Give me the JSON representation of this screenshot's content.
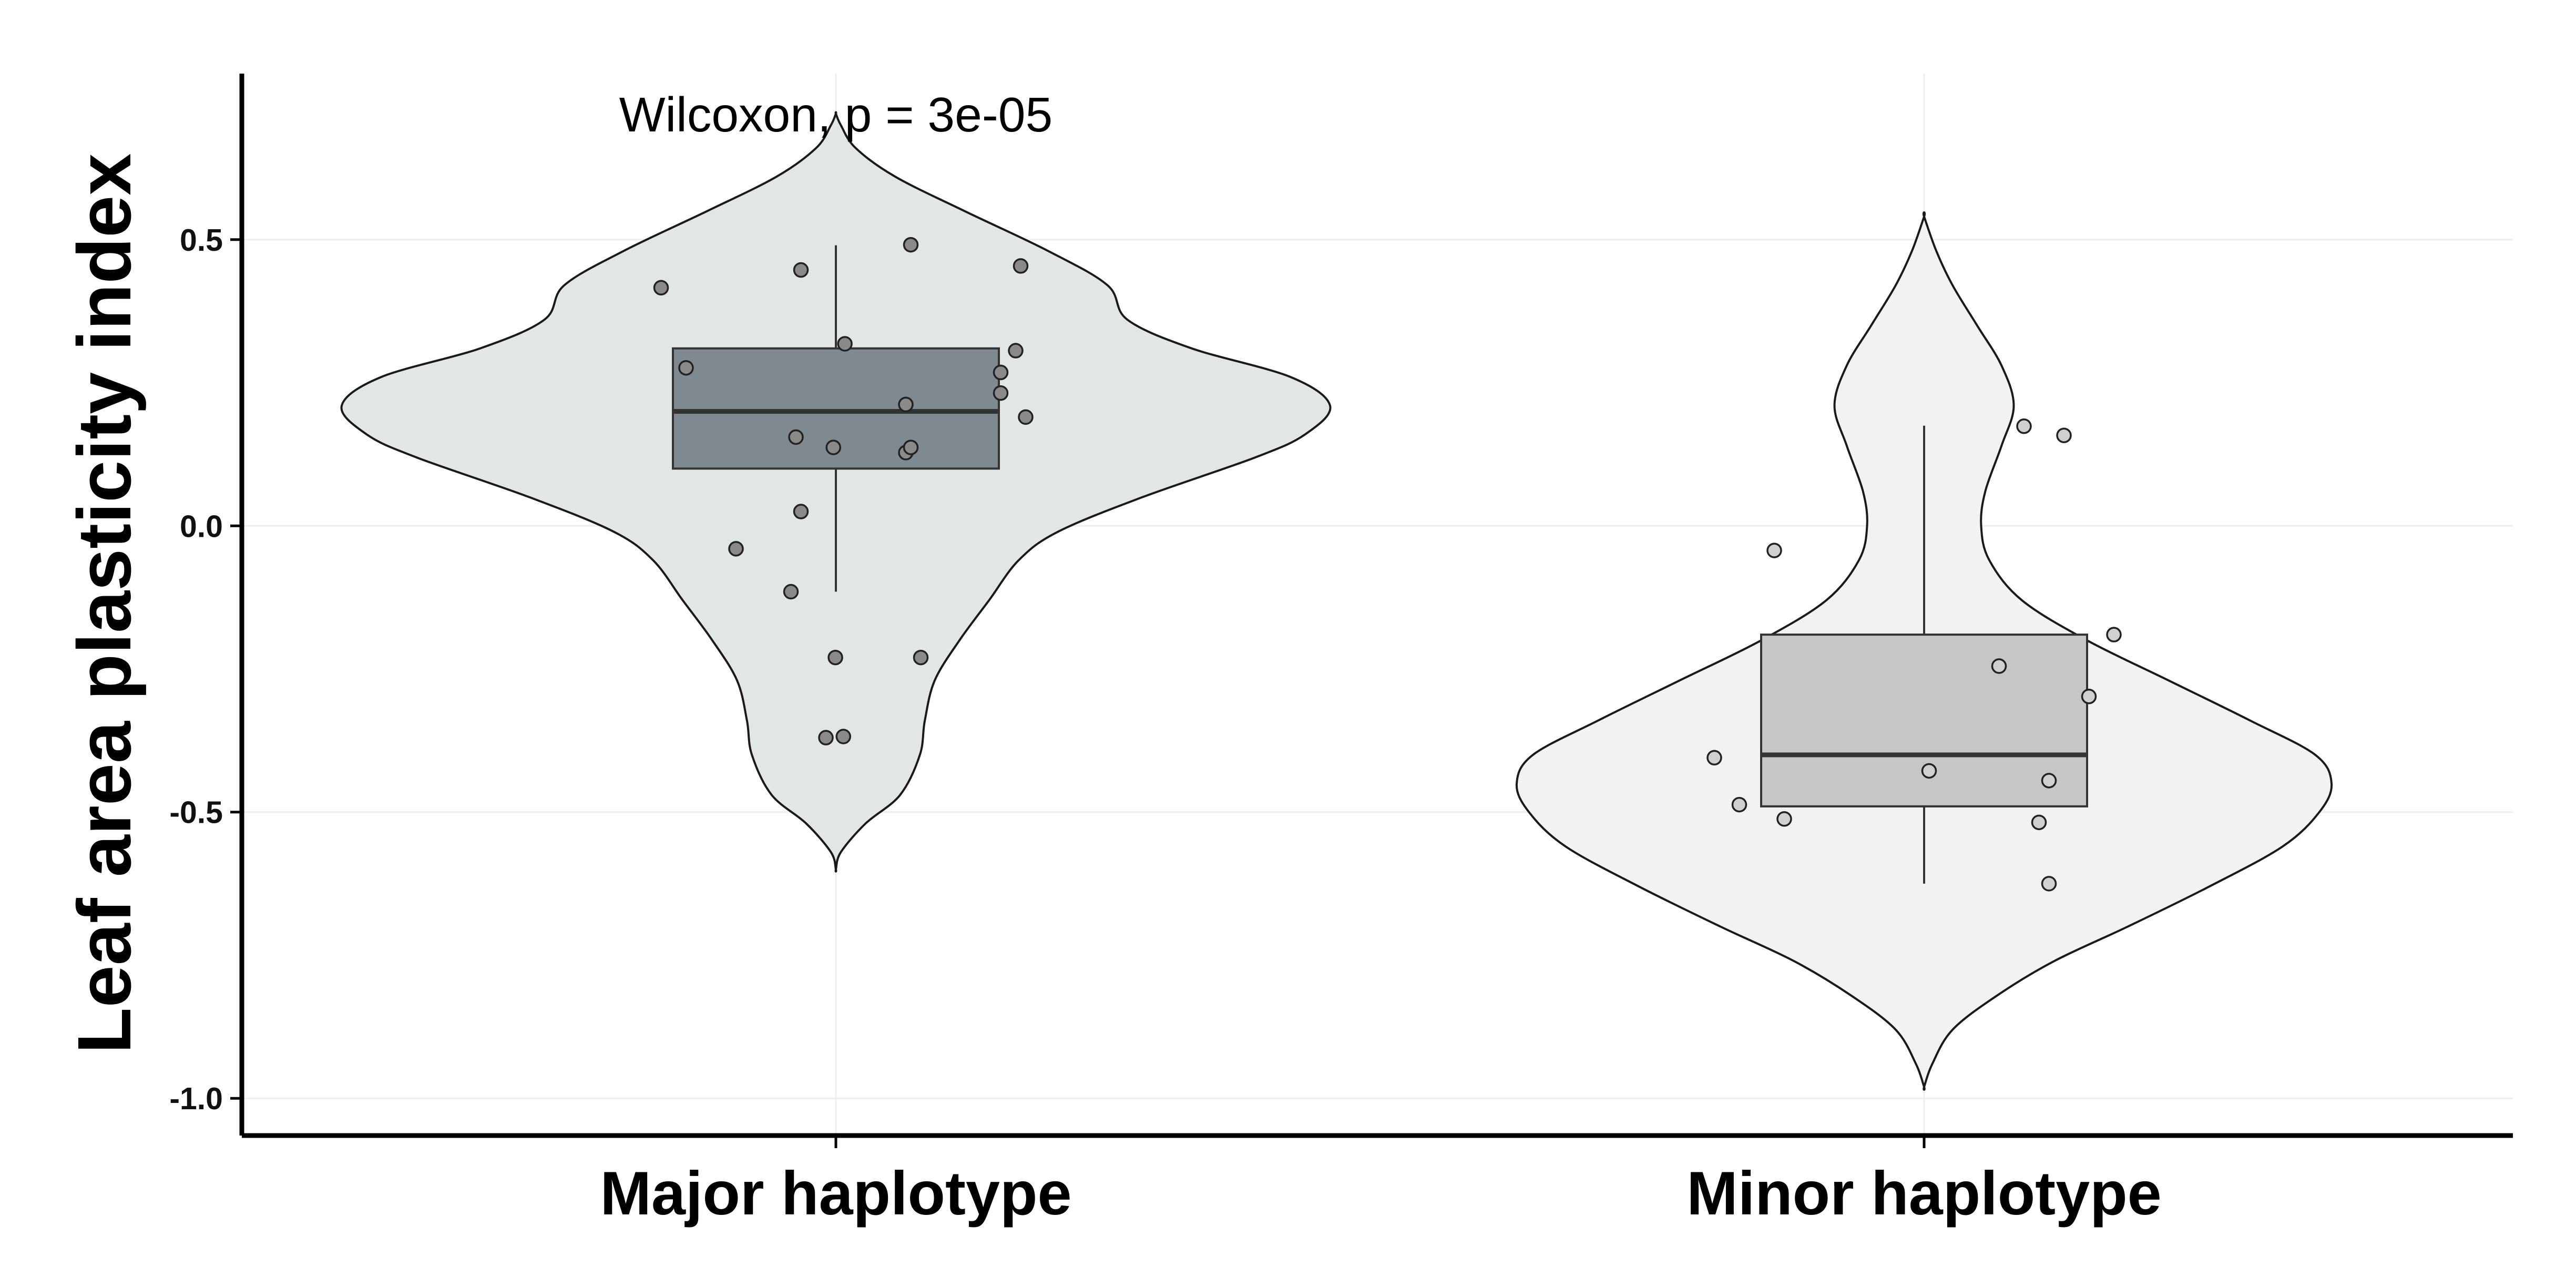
{
  "chart_data": {
    "type": "violin",
    "title": "",
    "xlabel": "",
    "ylabel": "Leaf area plasticity index",
    "ylim": [
      -1.065,
      0.79
    ],
    "yticks": [
      0.5,
      0.0,
      -0.5,
      -1.0
    ],
    "ytick_labels": [
      "0.5",
      "0.0",
      "-0.5",
      "-1.0"
    ],
    "categories": [
      "Major haplotype",
      "Minor haplotype"
    ],
    "annotation": "Wilcoxon, p = 3e-05",
    "grid": true,
    "legend": "none",
    "colors": {
      "major_violin_fill": "#e3e6e7",
      "minor_violin_fill": "#f2f2f2",
      "major_box_fill": "#7e8a90",
      "minor_box_fill": "#c6c6c6",
      "major_point_fill": "#8a8a8a",
      "minor_point_fill": "#d0d0d0",
      "outline": "#1a1a1a",
      "grid": "#eeeeee"
    },
    "groups": [
      {
        "name": "Major haplotype",
        "box": {
          "q1": 0.1,
          "median": 0.2,
          "q3": 0.31,
          "whisker_low": -0.115,
          "whisker_high": 0.49
        },
        "violin_range": [
          -0.6,
          0.72
        ],
        "density_profile": [
          [
            -0.6,
            0.0
          ],
          [
            -0.57,
            0.01
          ],
          [
            -0.52,
            0.06
          ],
          [
            -0.47,
            0.13
          ],
          [
            -0.4,
            0.17
          ],
          [
            -0.34,
            0.18
          ],
          [
            -0.27,
            0.2
          ],
          [
            -0.2,
            0.25
          ],
          [
            -0.13,
            0.31
          ],
          [
            -0.06,
            0.37
          ],
          [
            -0.01,
            0.45
          ],
          [
            0.05,
            0.62
          ],
          [
            0.12,
            0.85
          ],
          [
            0.16,
            0.95
          ],
          [
            0.21,
            1.0
          ],
          [
            0.26,
            0.92
          ],
          [
            0.31,
            0.72
          ],
          [
            0.36,
            0.59
          ],
          [
            0.42,
            0.55
          ],
          [
            0.48,
            0.43
          ],
          [
            0.55,
            0.26
          ],
          [
            0.61,
            0.12
          ],
          [
            0.66,
            0.04
          ],
          [
            0.7,
            0.01
          ],
          [
            0.72,
            0.0
          ]
        ],
        "points": [
          [
            -0.35,
            0.416
          ],
          [
            -0.3,
            0.276
          ],
          [
            -0.2,
            -0.04
          ],
          [
            -0.09,
            -0.115
          ],
          [
            -0.08,
            0.155
          ],
          [
            -0.07,
            0.447
          ],
          [
            -0.07,
            0.025
          ],
          [
            -0.02,
            -0.37
          ],
          [
            -0.005,
            0.137
          ],
          [
            -0.001,
            -0.23
          ],
          [
            0.015,
            -0.368
          ],
          [
            0.018,
            0.318
          ],
          [
            0.14,
            0.212
          ],
          [
            0.14,
            0.128
          ],
          [
            0.15,
            0.137
          ],
          [
            0.15,
            0.491
          ],
          [
            0.17,
            -0.23
          ],
          [
            0.33,
            0.268
          ],
          [
            0.33,
            0.232
          ],
          [
            0.36,
            0.306
          ],
          [
            0.37,
            0.454
          ],
          [
            0.38,
            0.19
          ]
        ]
      },
      {
        "name": "Minor haplotype",
        "box": {
          "q1": -0.49,
          "median": -0.4,
          "q3": -0.19,
          "whisker_low": -0.625,
          "whisker_high": 0.175
        },
        "violin_range": [
          -0.98,
          0.54
        ],
        "density_profile": [
          [
            -0.98,
            0.0
          ],
          [
            -0.94,
            0.02
          ],
          [
            -0.88,
            0.07
          ],
          [
            -0.82,
            0.18
          ],
          [
            -0.76,
            0.32
          ],
          [
            -0.7,
            0.5
          ],
          [
            -0.63,
            0.7
          ],
          [
            -0.56,
            0.88
          ],
          [
            -0.5,
            0.97
          ],
          [
            -0.45,
            1.0
          ],
          [
            -0.4,
            0.96
          ],
          [
            -0.34,
            0.8
          ],
          [
            -0.27,
            0.6
          ],
          [
            -0.2,
            0.4
          ],
          [
            -0.13,
            0.24
          ],
          [
            -0.06,
            0.16
          ],
          [
            0.0,
            0.14
          ],
          [
            0.06,
            0.15
          ],
          [
            0.14,
            0.19
          ],
          [
            0.21,
            0.22
          ],
          [
            0.28,
            0.19
          ],
          [
            0.35,
            0.13
          ],
          [
            0.42,
            0.07
          ],
          [
            0.48,
            0.03
          ],
          [
            0.54,
            0.0
          ]
        ],
        "points": [
          [
            -0.42,
            -0.405
          ],
          [
            -0.37,
            -0.487
          ],
          [
            -0.3,
            -0.043
          ],
          [
            -0.28,
            -0.512
          ],
          [
            0.01,
            -0.428
          ],
          [
            0.15,
            -0.245
          ],
          [
            0.2,
            0.174
          ],
          [
            0.23,
            -0.518
          ],
          [
            0.25,
            -0.445
          ],
          [
            0.28,
            0.158
          ],
          [
            0.33,
            -0.298
          ],
          [
            0.38,
            -0.19
          ],
          [
            0.25,
            -0.625
          ]
        ]
      }
    ]
  }
}
